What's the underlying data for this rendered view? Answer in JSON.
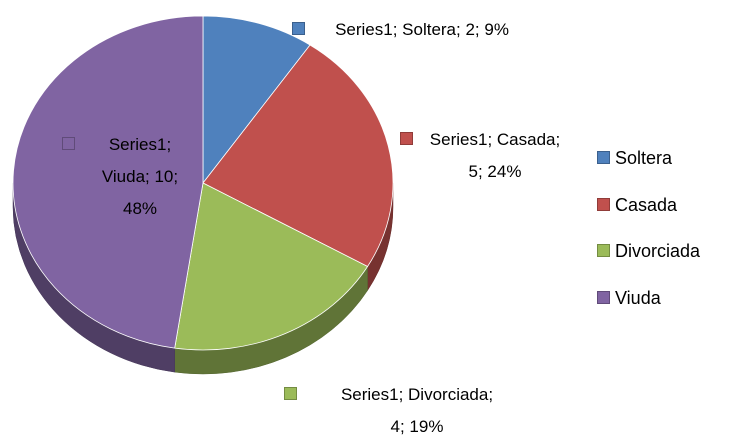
{
  "chart_data": {
    "type": "pie",
    "categories": [
      "Soltera",
      "Casada",
      "Divorciada",
      "Viuda"
    ],
    "series": [
      {
        "name": "Series1",
        "values": [
          2,
          5,
          4,
          10
        ],
        "value_labels": [
          "Series1; Soltera; 2; 9%",
          "Series1; Casada; 5; 24%",
          "Series1; Divorciada; 4; 19%",
          "Series1; Viuda; 10; 48%"
        ]
      }
    ],
    "colors": [
      "#4f81bd",
      "#c0504d",
      "#9bbb59",
      "#8064a2"
    ],
    "legend": "right"
  }
}
